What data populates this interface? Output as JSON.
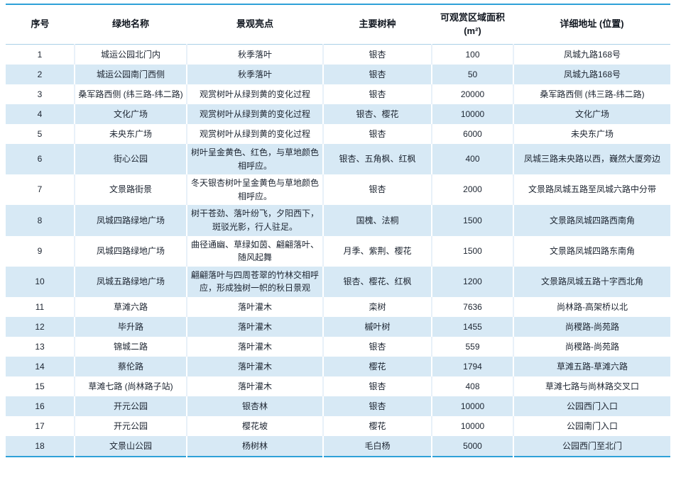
{
  "table": {
    "columns": [
      {
        "key": "no",
        "label": "序号"
      },
      {
        "key": "name",
        "label": "绿地名称"
      },
      {
        "key": "highlight",
        "label": "景观亮点"
      },
      {
        "key": "species",
        "label": "主要树种"
      },
      {
        "key": "area",
        "label": "可观赏区域面积 (m²)"
      },
      {
        "key": "address",
        "label": "详细地址 (位置)"
      }
    ],
    "rows": [
      {
        "no": "1",
        "name": "城运公园北门内",
        "highlight": "秋季落叶",
        "species": "银杏",
        "area": "100",
        "address": "凤城九路168号"
      },
      {
        "no": "2",
        "name": "城运公园南门西侧",
        "highlight": "秋季落叶",
        "species": "银杏",
        "area": "50",
        "address": "凤城九路168号"
      },
      {
        "no": "3",
        "name": "桑军路西侧 (纬三路-纬二路)",
        "highlight": "观赏树叶从绿到黄的变化过程",
        "species": "银杏",
        "area": "20000",
        "address": "桑军路西侧 (纬三路-纬二路)"
      },
      {
        "no": "4",
        "name": "文化广场",
        "highlight": "观赏树叶从绿到黄的变化过程",
        "species": "银杏、樱花",
        "area": "10000",
        "address": "文化广场"
      },
      {
        "no": "5",
        "name": "未央东广场",
        "highlight": "观赏树叶从绿到黄的变化过程",
        "species": "银杏",
        "area": "6000",
        "address": "未央东广场"
      },
      {
        "no": "6",
        "name": "街心公园",
        "highlight": "树叶呈金黄色、红色，与草地颜色相呼应。",
        "species": "银杏、五角枫、红枫",
        "area": "400",
        "address": "凤城三路未央路以西，巍然大厦旁边"
      },
      {
        "no": "7",
        "name": "文景路街景",
        "highlight": "冬天银杏树叶呈金黄色与草地颜色相呼应。",
        "species": "银杏",
        "area": "2000",
        "address": "文景路凤城五路至凤城六路中分带"
      },
      {
        "no": "8",
        "name": "凤城四路绿地广场",
        "highlight": "树干苍劲、落叶纷飞，夕阳西下，斑驳光影，行人驻足。",
        "species": "国槐、法桐",
        "area": "1500",
        "address": "文景路凤城四路西南角"
      },
      {
        "no": "9",
        "name": "凤城四路绿地广场",
        "highlight": "曲径通幽、草绿如茵、翩翩落叶、随风起舞",
        "species": "月季、紫荆、樱花",
        "area": "1500",
        "address": "文景路凤城四路东南角"
      },
      {
        "no": "10",
        "name": "凤城五路绿地广场",
        "highlight": "翩翩落叶与四周苍翠的竹林交相呼应，形成独树一帜的秋日景观",
        "species": "银杏、樱花、红枫",
        "area": "1200",
        "address": "文景路凤城五路十字西北角"
      },
      {
        "no": "11",
        "name": "草滩六路",
        "highlight": "落叶灌木",
        "species": "栾树",
        "area": "7636",
        "address": "尚林路-高架桥以北"
      },
      {
        "no": "12",
        "name": "毕升路",
        "highlight": "落叶灌木",
        "species": "槭叶树",
        "area": "1455",
        "address": "尚稷路-尚苑路"
      },
      {
        "no": "13",
        "name": "锦城二路",
        "highlight": "落叶灌木",
        "species": "银杏",
        "area": "559",
        "address": "尚稷路-尚苑路"
      },
      {
        "no": "14",
        "name": "蔡伦路",
        "highlight": "落叶灌木",
        "species": "樱花",
        "area": "1794",
        "address": "草滩五路-草滩六路"
      },
      {
        "no": "15",
        "name": "草滩七路 (尚林路子站)",
        "highlight": "落叶灌木",
        "species": "银杏",
        "area": "408",
        "address": "草滩七路与尚林路交叉口"
      },
      {
        "no": "16",
        "name": "开元公园",
        "highlight": "银杏林",
        "species": "银杏",
        "area": "10000",
        "address": "公园西门入口"
      },
      {
        "no": "17",
        "name": "开元公园",
        "highlight": "樱花坡",
        "species": "樱花",
        "area": "10000",
        "address": "公园南门入口"
      },
      {
        "no": "18",
        "name": "文景山公园",
        "highlight": "杨树林",
        "species": "毛白杨",
        "area": "5000",
        "address": "公园西门至北门"
      }
    ]
  },
  "colors": {
    "accent_rule": "#2ea1d8",
    "zebra_row": "#d7e9f5",
    "header_underline": "#a9cfe7",
    "text": "#1c2430"
  }
}
